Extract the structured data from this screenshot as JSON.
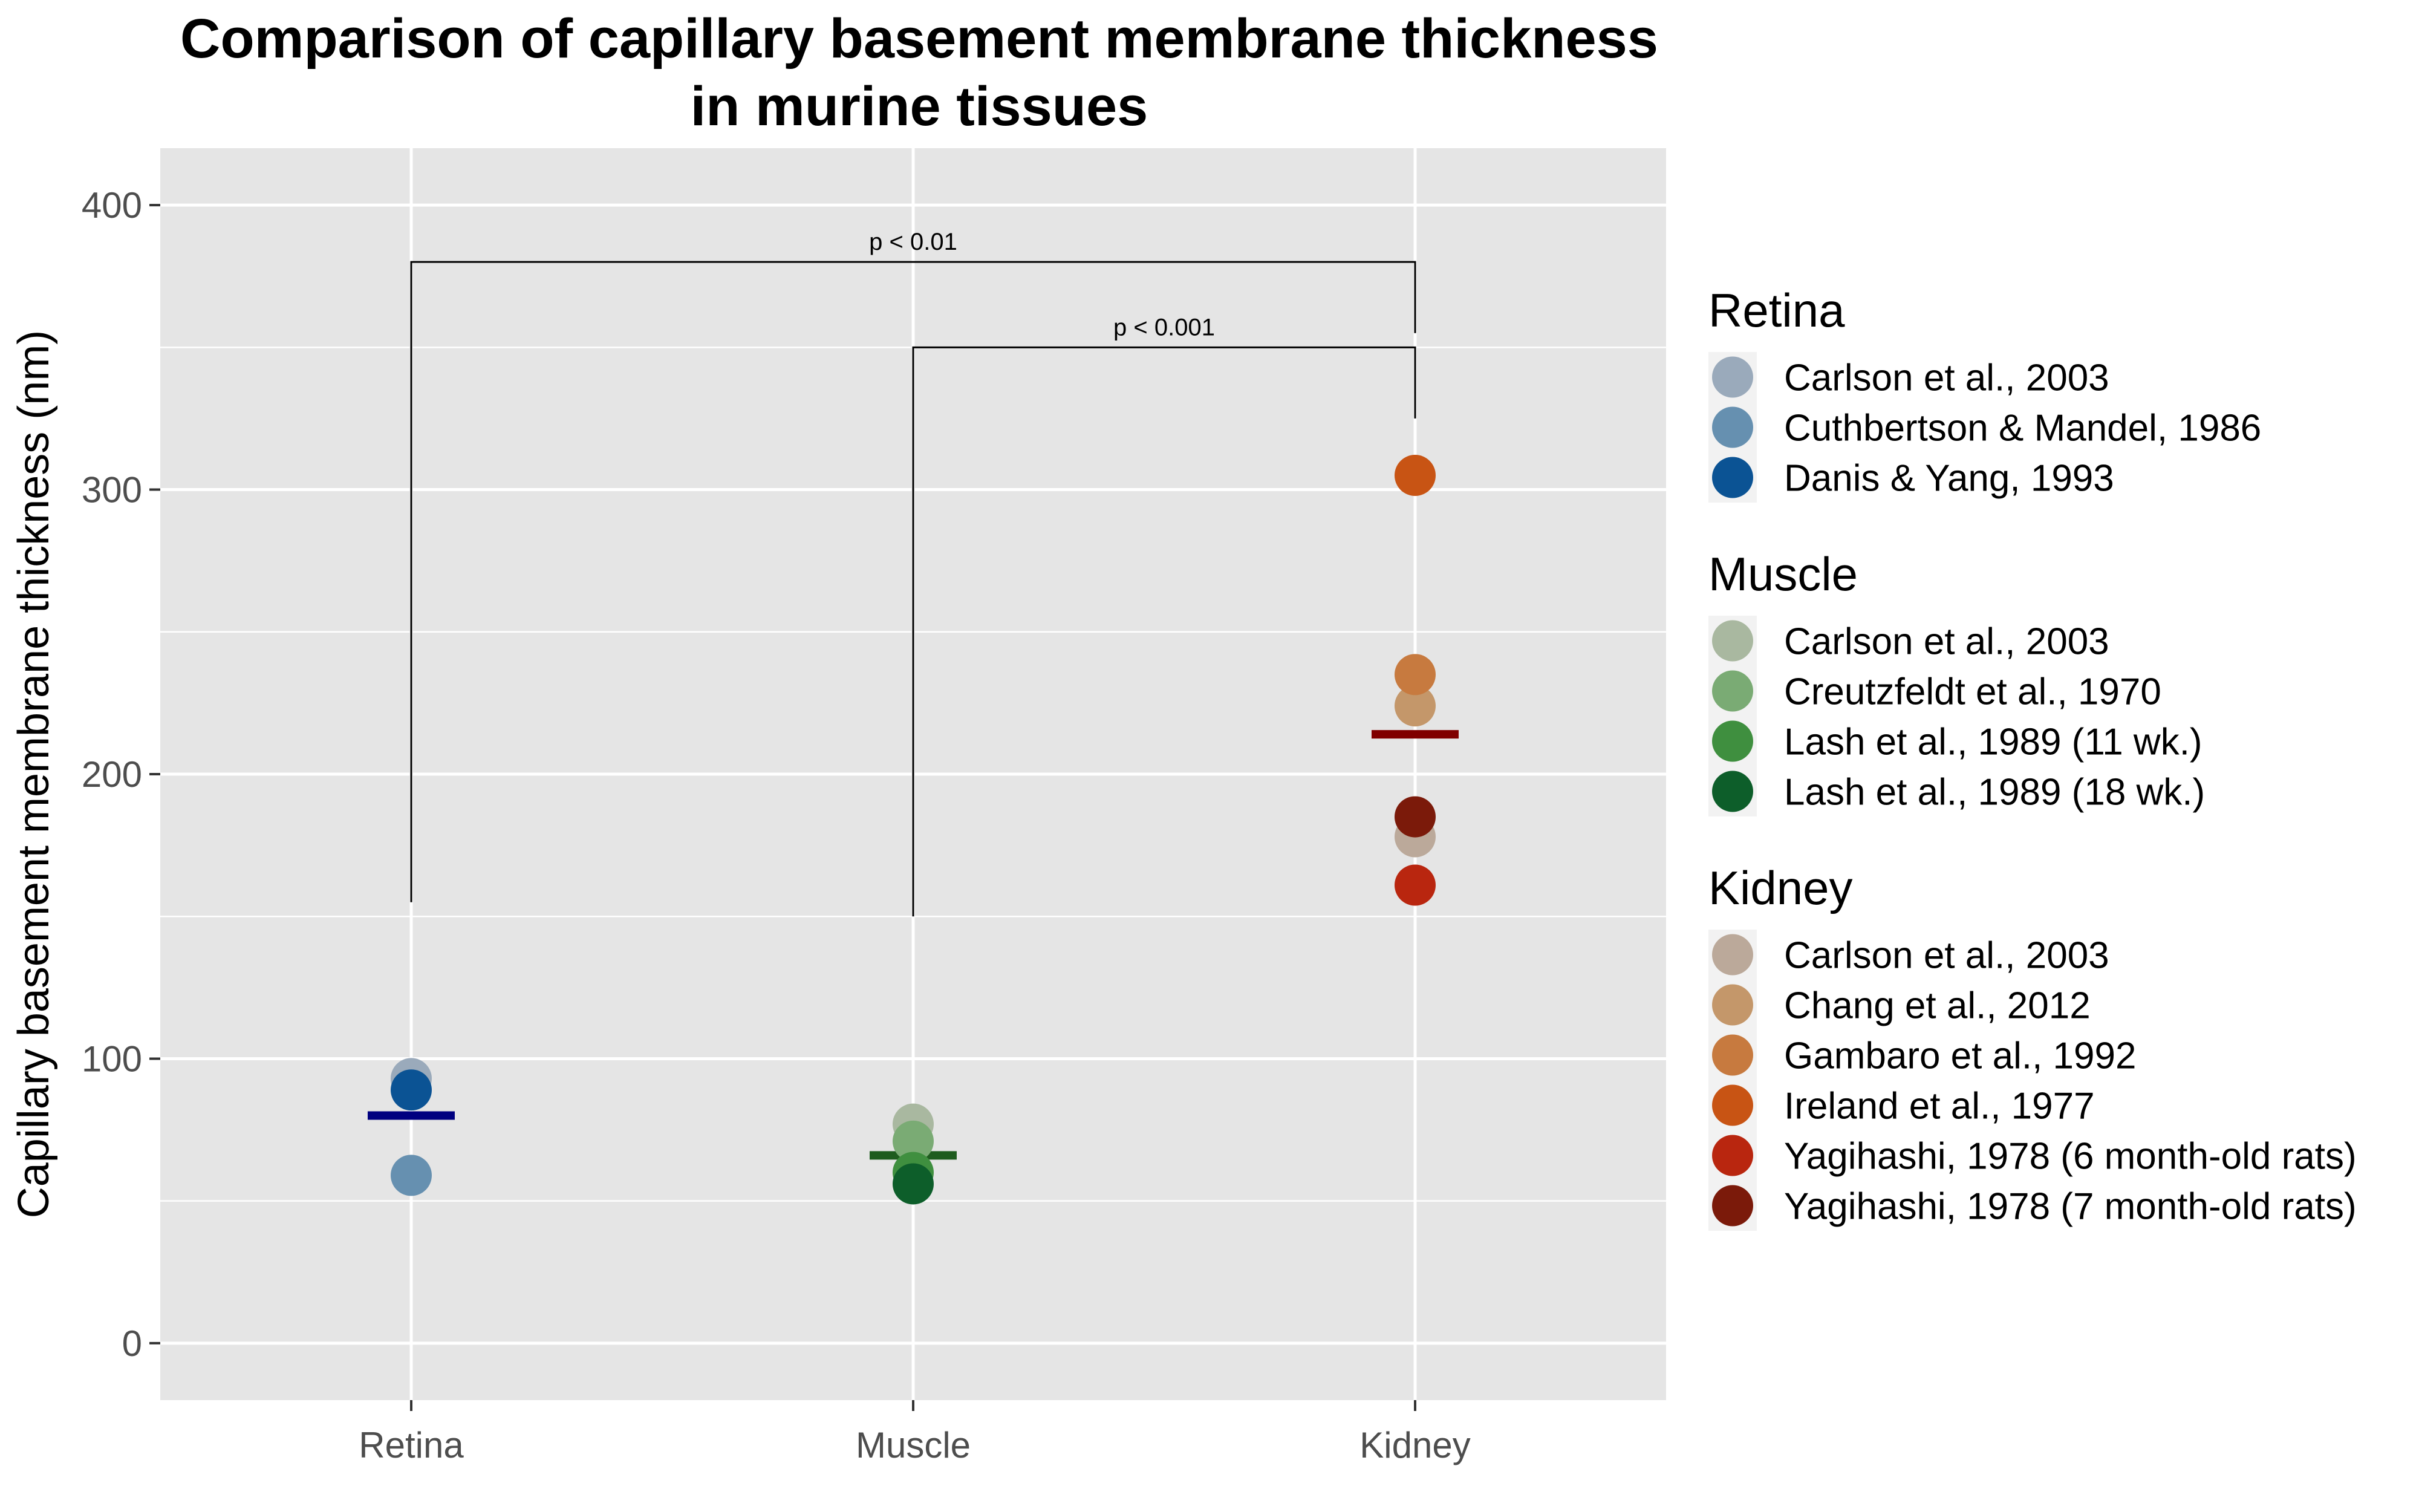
{
  "chart_data": {
    "type": "scatter",
    "title": "Comparison of capillary basement membrane thickness\nin murine tissues",
    "title_lines": [
      "Comparison of capillary basement membrane thickness",
      "in murine tissues"
    ],
    "xlabel": "",
    "ylabel": "Capillary basement membrane thickness (nm)",
    "categories": [
      "Retina",
      "Muscle",
      "Kidney"
    ],
    "ylim": [
      -20,
      420
    ],
    "yticks": [
      0,
      100,
      200,
      300,
      400
    ],
    "grid": true,
    "legend_position": "right",
    "groups": [
      {
        "name": "Retina",
        "category": "Retina",
        "mean": 80,
        "mean_color": "#000080",
        "series": [
          {
            "name": "Carlson et al., 2003",
            "value": 93,
            "color": "#9aaabb"
          },
          {
            "name": "Cuthbertson & Mandel, 1986",
            "value": 59,
            "color": "#6690b0"
          },
          {
            "name": "Danis & Yang, 1993",
            "value": 89,
            "color": "#0b5394"
          }
        ]
      },
      {
        "name": "Muscle",
        "category": "Muscle",
        "mean": 66,
        "mean_color": "#1e5c1e",
        "series": [
          {
            "name": "Carlson et al., 2003",
            "value": 77,
            "color": "#a9b8a0"
          },
          {
            "name": "Creutzfeldt et al., 1970",
            "value": 71,
            "color": "#7aab74"
          },
          {
            "name": "Lash et al., 1989 (11 wk.)",
            "value": 60,
            "color": "#3f8f3f"
          },
          {
            "name": "Lash et al., 1989 (18 wk.)",
            "value": 56,
            "color": "#0d5e2a"
          }
        ]
      },
      {
        "name": "Kidney",
        "category": "Kidney",
        "mean": 214,
        "mean_color": "#800000",
        "series": [
          {
            "name": "Carlson et al., 2003",
            "value": 178,
            "color": "#bba99a"
          },
          {
            "name": "Chang et al., 2012",
            "value": 224,
            "color": "#c4976a"
          },
          {
            "name": "Gambaro et al., 1992",
            "value": 235,
            "color": "#c77a3f"
          },
          {
            "name": "Ireland et al., 1977",
            "value": 305,
            "color": "#c85414"
          },
          {
            "name": "Yagihashi, 1978 (6 month-old rats)",
            "value": 161,
            "color": "#b9260f"
          },
          {
            "name": "Yagihashi, 1978 (7 month-old rats)",
            "value": 185,
            "color": "#7b1a0a"
          }
        ]
      }
    ],
    "annotations": [
      {
        "text": "p < 0.01",
        "from": "Retina",
        "to": "Kidney",
        "bar_y": 380,
        "left_end_y": 155,
        "right_end_y": 355
      },
      {
        "text": "p < 0.001",
        "from": "Muscle",
        "to": "Kidney",
        "bar_y": 350,
        "left_end_y": 150,
        "right_end_y": 325
      }
    ]
  },
  "colors": {
    "panel_background": "#e5e5e5",
    "grid": "#ffffff",
    "tick_text": "#4d4d4d"
  }
}
